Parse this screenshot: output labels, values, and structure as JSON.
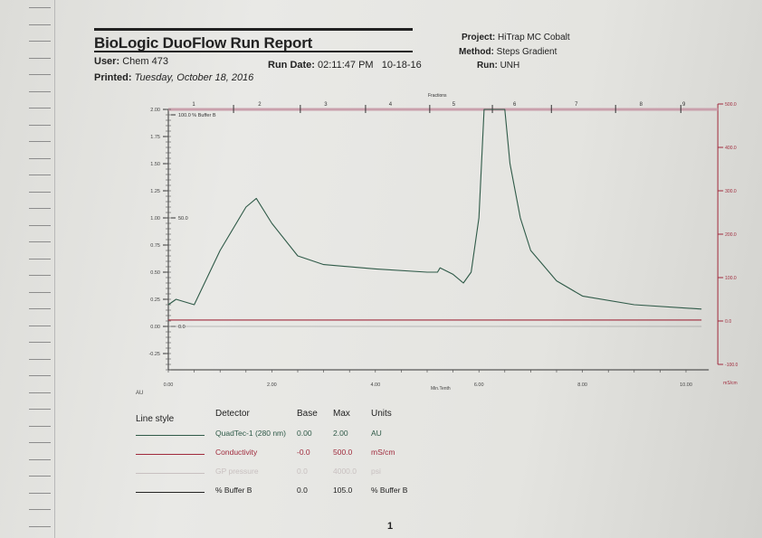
{
  "report": {
    "title": "BioLogic DuoFlow Run Report",
    "user_label": "User:",
    "user": "Chem 473",
    "run_date_label": "Run Date:",
    "run_date": "02:11:47 PM   10-18-16",
    "printed_label": "Printed:",
    "printed": "Tuesday, October 18, 2016",
    "project_label": "Project:",
    "project": "HiTrap MC Cobalt",
    "method_label": "Method:",
    "method": "Steps Gradient",
    "run_label": "Run:",
    "run": "UNH",
    "page_number": "1"
  },
  "legend": {
    "headers": [
      "Line style",
      "Detector",
      "Base",
      "Max",
      "Units"
    ],
    "rows": [
      {
        "detector": "QuadTec-1 (280 nm)",
        "base": "0.00",
        "max": "2.00",
        "units": "AU",
        "color": "#2f5a48"
      },
      {
        "detector": "Conductivity",
        "base": "-0.0",
        "max": "500.0",
        "units": "mS/cm",
        "color": "#a02a3c"
      },
      {
        "detector": "GP pressure",
        "base": "0.0",
        "max": "4000.0",
        "units": "psi",
        "color": "#c8c0c0"
      },
      {
        "detector": "% Buffer B",
        "base": "0.0",
        "max": "105.0",
        "units": "% Buffer B",
        "color": "#222222"
      }
    ]
  },
  "chart_data": {
    "type": "line",
    "xlabel": "Min.Tenth",
    "ylabel": "AU",
    "y2label": "mS/cm",
    "xlim": [
      0,
      10.3
    ],
    "ylim": [
      -0.4,
      2.0
    ],
    "y2lim": [
      -100,
      500
    ],
    "x_ticks": [
      "0.00",
      "2.00",
      "4.00",
      "6.00",
      "8.00",
      "10.00"
    ],
    "y_ticks": [
      "2.00",
      "1.75",
      "1.50",
      "1.25",
      "1.00",
      "0.75",
      "0.50",
      "0.25",
      "0.00",
      "-0.25"
    ],
    "y2_ticks": [
      "500.0",
      "400.0",
      "300.0",
      "200.0",
      "100.0",
      "0.0",
      "-100.0"
    ],
    "buffer_b_labels": [
      "100.0 % Buffer B",
      "50.0",
      "0.0"
    ],
    "fractions_label": "Fractions",
    "fractions": [
      "1",
      "2",
      "3",
      "4",
      "5",
      "6",
      "7",
      "8",
      "9"
    ],
    "fraction_boundaries": [
      1.26,
      2.55,
      3.81,
      5.05,
      6.26,
      7.4,
      8.64,
      9.9
    ],
    "series": [
      {
        "name": "QuadTec-1 (280 nm)",
        "axis": "AU",
        "color": "#2f5a48",
        "x": [
          0,
          0.15,
          0.5,
          1.0,
          1.5,
          1.7,
          2.0,
          2.5,
          3.0,
          4.0,
          5.0,
          5.2,
          5.25,
          5.5,
          5.7,
          5.85,
          6.0,
          6.1,
          6.5,
          6.6,
          6.8,
          7.0,
          7.5,
          8.0,
          9.0,
          10.3
        ],
        "y": [
          0.2,
          0.25,
          0.2,
          0.7,
          1.1,
          1.18,
          0.95,
          0.65,
          0.57,
          0.53,
          0.5,
          0.5,
          0.54,
          0.48,
          0.4,
          0.5,
          1.0,
          2.0,
          2.0,
          1.5,
          1.0,
          0.7,
          0.42,
          0.28,
          0.2,
          0.16
        ]
      },
      {
        "name": "Conductivity",
        "axis": "mS/cm",
        "color": "#a02a3c",
        "x": [
          0,
          0.1,
          2.0,
          4.0,
          6.2,
          6.5,
          6.8,
          10.3
        ],
        "y": [
          25,
          40,
          41,
          44,
          48,
          72,
          80,
          80
        ]
      },
      {
        "name": "% Buffer B",
        "axis": "%",
        "color": "#888888",
        "x": [
          0,
          10.3
        ],
        "y": [
          0,
          0
        ]
      }
    ]
  }
}
